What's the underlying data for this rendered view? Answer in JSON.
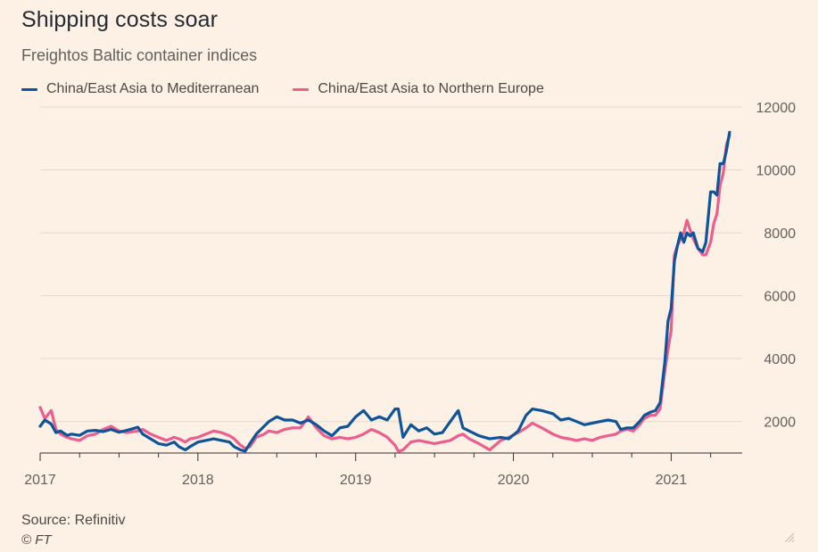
{
  "header": {
    "title": "Shipping costs soar",
    "subtitle": "Freightos Baltic container indices"
  },
  "footer": {
    "source": "Source: Refinitiv",
    "credit": "© FT"
  },
  "colors": {
    "background": "#fdf1e6",
    "mediterranean": "#0f5499",
    "northern_europe": "#eb5e8d",
    "grid": "#e6d9ce"
  },
  "chart_data": {
    "type": "line",
    "title": "Shipping costs soar",
    "subtitle": "Freightos Baltic container indices",
    "ylim": [
      1000,
      12000
    ],
    "xlim": [
      2017.0,
      2021.45
    ],
    "y_ticks": [
      2000,
      4000,
      6000,
      8000,
      10000,
      12000
    ],
    "y_tick_labels": [
      "2000",
      "4000",
      "6000",
      "8000",
      "10000",
      "12000"
    ],
    "x_ticks": [
      2017,
      2018,
      2019,
      2020,
      2021
    ],
    "x_tick_labels": [
      "2017",
      "2018",
      "2019",
      "2020",
      "2021"
    ],
    "y_axis_side": "right",
    "grid": true,
    "legend_position": "top-left",
    "series": [
      {
        "name": "China/East Asia to Mediterranean",
        "color": "#0f5499",
        "points": [
          [
            2017.0,
            1850
          ],
          [
            2017.03,
            2050
          ],
          [
            2017.07,
            1920
          ],
          [
            2017.1,
            1650
          ],
          [
            2017.13,
            1700
          ],
          [
            2017.17,
            1560
          ],
          [
            2017.2,
            1600
          ],
          [
            2017.25,
            1560
          ],
          [
            2017.3,
            1700
          ],
          [
            2017.35,
            1720
          ],
          [
            2017.4,
            1680
          ],
          [
            2017.45,
            1750
          ],
          [
            2017.5,
            1660
          ],
          [
            2017.55,
            1720
          ],
          [
            2017.62,
            1820
          ],
          [
            2017.65,
            1600
          ],
          [
            2017.7,
            1450
          ],
          [
            2017.75,
            1300
          ],
          [
            2017.8,
            1250
          ],
          [
            2017.85,
            1350
          ],
          [
            2017.88,
            1200
          ],
          [
            2017.92,
            1100
          ],
          [
            2017.95,
            1200
          ],
          [
            2018.0,
            1350
          ],
          [
            2018.05,
            1400
          ],
          [
            2018.1,
            1450
          ],
          [
            2018.15,
            1400
          ],
          [
            2018.2,
            1350
          ],
          [
            2018.23,
            1200
          ],
          [
            2018.27,
            1100
          ],
          [
            2018.3,
            1060
          ],
          [
            2018.33,
            1300
          ],
          [
            2018.37,
            1600
          ],
          [
            2018.42,
            1850
          ],
          [
            2018.45,
            2000
          ],
          [
            2018.5,
            2150
          ],
          [
            2018.55,
            2050
          ],
          [
            2018.6,
            2050
          ],
          [
            2018.65,
            1950
          ],
          [
            2018.7,
            2050
          ],
          [
            2018.75,
            1900
          ],
          [
            2018.8,
            1700
          ],
          [
            2018.85,
            1550
          ],
          [
            2018.9,
            1800
          ],
          [
            2018.95,
            1850
          ],
          [
            2019.0,
            2150
          ],
          [
            2019.05,
            2350
          ],
          [
            2019.1,
            2050
          ],
          [
            2019.15,
            2150
          ],
          [
            2019.2,
            2050
          ],
          [
            2019.25,
            2400
          ],
          [
            2019.27,
            2400
          ],
          [
            2019.3,
            1500
          ],
          [
            2019.35,
            1900
          ],
          [
            2019.4,
            1700
          ],
          [
            2019.45,
            1800
          ],
          [
            2019.5,
            1600
          ],
          [
            2019.55,
            1650
          ],
          [
            2019.6,
            2000
          ],
          [
            2019.65,
            2350
          ],
          [
            2019.68,
            1800
          ],
          [
            2019.72,
            1700
          ],
          [
            2019.78,
            1550
          ],
          [
            2019.85,
            1450
          ],
          [
            2019.92,
            1500
          ],
          [
            2019.97,
            1450
          ],
          [
            2020.03,
            1700
          ],
          [
            2020.08,
            2200
          ],
          [
            2020.12,
            2400
          ],
          [
            2020.18,
            2350
          ],
          [
            2020.25,
            2250
          ],
          [
            2020.3,
            2050
          ],
          [
            2020.35,
            2100
          ],
          [
            2020.4,
            2000
          ],
          [
            2020.45,
            1900
          ],
          [
            2020.5,
            1950
          ],
          [
            2020.55,
            2000
          ],
          [
            2020.6,
            2050
          ],
          [
            2020.65,
            2000
          ],
          [
            2020.68,
            1750
          ],
          [
            2020.72,
            1800
          ],
          [
            2020.76,
            1800
          ],
          [
            2020.8,
            2000
          ],
          [
            2020.83,
            2200
          ],
          [
            2020.87,
            2300
          ],
          [
            2020.9,
            2350
          ],
          [
            2020.93,
            2600
          ],
          [
            2020.96,
            3900
          ],
          [
            2020.98,
            5200
          ],
          [
            2021.0,
            5600
          ],
          [
            2021.02,
            7100
          ],
          [
            2021.04,
            7600
          ],
          [
            2021.06,
            8000
          ],
          [
            2021.08,
            7700
          ],
          [
            2021.1,
            8000
          ],
          [
            2021.12,
            7900
          ],
          [
            2021.14,
            8000
          ],
          [
            2021.17,
            7500
          ],
          [
            2021.2,
            7400
          ],
          [
            2021.22,
            7700
          ],
          [
            2021.25,
            9300
          ],
          [
            2021.27,
            9300
          ],
          [
            2021.29,
            9200
          ],
          [
            2021.31,
            10200
          ],
          [
            2021.33,
            10200
          ],
          [
            2021.35,
            10600
          ],
          [
            2021.37,
            11200
          ]
        ]
      },
      {
        "name": "China/East Asia to Northern Europe",
        "color": "#eb5e8d",
        "points": [
          [
            2017.0,
            2450
          ],
          [
            2017.03,
            2100
          ],
          [
            2017.07,
            2350
          ],
          [
            2017.1,
            1750
          ],
          [
            2017.13,
            1600
          ],
          [
            2017.17,
            1500
          ],
          [
            2017.2,
            1450
          ],
          [
            2017.25,
            1400
          ],
          [
            2017.3,
            1550
          ],
          [
            2017.35,
            1600
          ],
          [
            2017.4,
            1750
          ],
          [
            2017.45,
            1850
          ],
          [
            2017.5,
            1700
          ],
          [
            2017.55,
            1650
          ],
          [
            2017.62,
            1700
          ],
          [
            2017.65,
            1750
          ],
          [
            2017.7,
            1600
          ],
          [
            2017.75,
            1500
          ],
          [
            2017.8,
            1400
          ],
          [
            2017.85,
            1500
          ],
          [
            2017.88,
            1450
          ],
          [
            2017.92,
            1350
          ],
          [
            2017.95,
            1450
          ],
          [
            2018.0,
            1500
          ],
          [
            2018.05,
            1600
          ],
          [
            2018.1,
            1700
          ],
          [
            2018.15,
            1650
          ],
          [
            2018.2,
            1550
          ],
          [
            2018.23,
            1450
          ],
          [
            2018.27,
            1250
          ],
          [
            2018.3,
            1150
          ],
          [
            2018.33,
            1200
          ],
          [
            2018.37,
            1500
          ],
          [
            2018.42,
            1600
          ],
          [
            2018.45,
            1700
          ],
          [
            2018.5,
            1650
          ],
          [
            2018.55,
            1750
          ],
          [
            2018.6,
            1800
          ],
          [
            2018.65,
            1800
          ],
          [
            2018.7,
            2150
          ],
          [
            2018.75,
            1800
          ],
          [
            2018.8,
            1550
          ],
          [
            2018.85,
            1450
          ],
          [
            2018.9,
            1500
          ],
          [
            2018.95,
            1450
          ],
          [
            2019.0,
            1500
          ],
          [
            2019.05,
            1600
          ],
          [
            2019.1,
            1750
          ],
          [
            2019.15,
            1650
          ],
          [
            2019.2,
            1500
          ],
          [
            2019.25,
            1250
          ],
          [
            2019.27,
            1050
          ],
          [
            2019.3,
            1100
          ],
          [
            2019.35,
            1350
          ],
          [
            2019.4,
            1400
          ],
          [
            2019.45,
            1350
          ],
          [
            2019.5,
            1300
          ],
          [
            2019.55,
            1350
          ],
          [
            2019.6,
            1400
          ],
          [
            2019.65,
            1550
          ],
          [
            2019.68,
            1600
          ],
          [
            2019.72,
            1450
          ],
          [
            2019.78,
            1300
          ],
          [
            2019.85,
            1100
          ],
          [
            2019.92,
            1400
          ],
          [
            2019.97,
            1500
          ],
          [
            2020.03,
            1650
          ],
          [
            2020.08,
            1800
          ],
          [
            2020.12,
            1950
          ],
          [
            2020.18,
            1800
          ],
          [
            2020.25,
            1600
          ],
          [
            2020.3,
            1500
          ],
          [
            2020.35,
            1450
          ],
          [
            2020.4,
            1400
          ],
          [
            2020.45,
            1450
          ],
          [
            2020.5,
            1400
          ],
          [
            2020.55,
            1500
          ],
          [
            2020.6,
            1550
          ],
          [
            2020.65,
            1600
          ],
          [
            2020.68,
            1700
          ],
          [
            2020.72,
            1750
          ],
          [
            2020.76,
            1700
          ],
          [
            2020.8,
            1900
          ],
          [
            2020.83,
            2100
          ],
          [
            2020.87,
            2200
          ],
          [
            2020.9,
            2200
          ],
          [
            2020.93,
            2400
          ],
          [
            2020.96,
            3600
          ],
          [
            2020.98,
            4300
          ],
          [
            2021.0,
            4900
          ],
          [
            2021.02,
            7300
          ],
          [
            2021.04,
            7600
          ],
          [
            2021.06,
            7800
          ],
          [
            2021.08,
            8000
          ],
          [
            2021.1,
            8400
          ],
          [
            2021.12,
            8100
          ],
          [
            2021.14,
            7800
          ],
          [
            2021.17,
            7500
          ],
          [
            2021.2,
            7300
          ],
          [
            2021.22,
            7300
          ],
          [
            2021.25,
            7700
          ],
          [
            2021.27,
            8300
          ],
          [
            2021.29,
            8600
          ],
          [
            2021.31,
            9500
          ],
          [
            2021.33,
            9900
          ],
          [
            2021.35,
            10800
          ],
          [
            2021.37,
            11100
          ]
        ]
      }
    ]
  }
}
